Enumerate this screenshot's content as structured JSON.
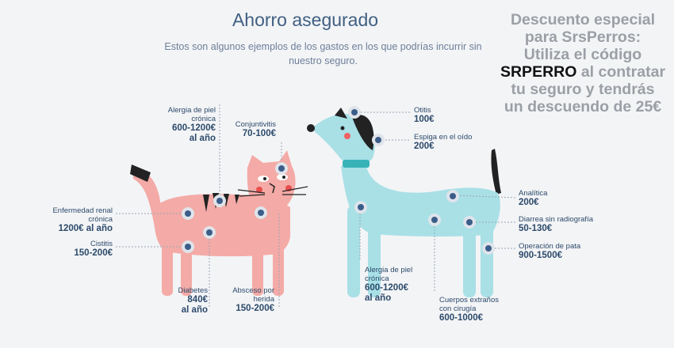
{
  "header": {
    "title": "Ahorro asegurado",
    "subtitle_line1": "Estos son algunos ejemplos de los gastos en los que podrías incurrir sin",
    "subtitle_line2": "nuestro seguro."
  },
  "promo": {
    "line1": "Descuento especial",
    "line2": "para SrsPerros:",
    "line3": "Utiliza el código",
    "code": "SRPERRO",
    "line4_rest": " al contratar",
    "line5": "tu seguro y tendrás",
    "line6": "un descuendo de 25€"
  },
  "cat_labels": {
    "alergia": {
      "name1": "Alergia de piel",
      "name2": "crónica",
      "value1": "600-1200€",
      "value2": "al año"
    },
    "conjuntivitis": {
      "name": "Conjuntivitis",
      "value": "70-100€"
    },
    "renal": {
      "name1": "Enfermedad renal",
      "name2": "crónica",
      "value": "1200€ al año"
    },
    "cistitis": {
      "name": "Cistitis",
      "value": "150-200€"
    },
    "diabetes": {
      "name": "Diabetes",
      "value1": "840€",
      "value2": "al año"
    },
    "absceso": {
      "name1": "Absceso por",
      "name2": "herida",
      "value": "150-200€"
    }
  },
  "dog_labels": {
    "otitis": {
      "name": "Otitis",
      "value": "100€"
    },
    "espiga": {
      "name": "Espiga en el oído",
      "value": "200€"
    },
    "analitica": {
      "name": "Analítica",
      "value": "200€"
    },
    "diarrea": {
      "name": "Diarrea sin radiografía",
      "value": "50-130€"
    },
    "operacion": {
      "name": "Operación de pata",
      "value": "900-1500€"
    },
    "alergia": {
      "name1": "Alergia de piel",
      "name2": "crónica",
      "value1": "600-1200€",
      "value2": "al año"
    },
    "cuerpos": {
      "name1": "Cuerpos extraños",
      "name2": "con cirugía",
      "value": "600-1000€"
    }
  },
  "colors": {
    "cat": "#f4aaa6",
    "dog": "#a8e0e6",
    "dot": "#3b5d89",
    "text": "#2c4a6b",
    "collar": "#37b3b8"
  }
}
